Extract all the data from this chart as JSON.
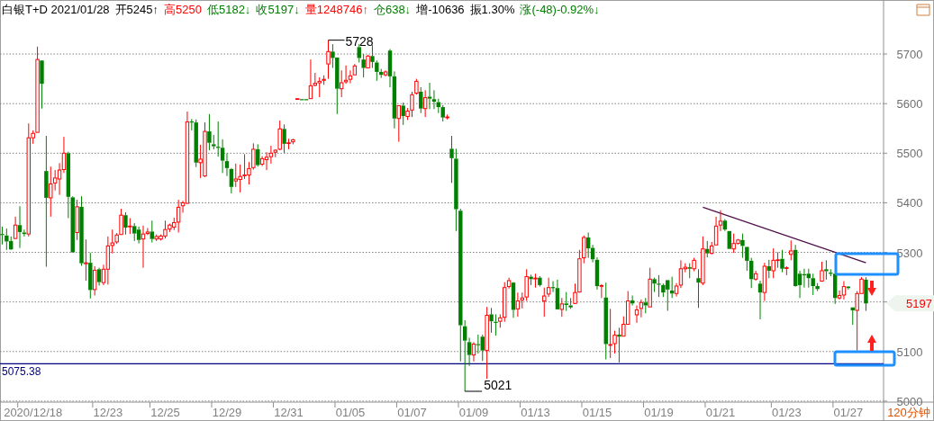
{
  "chart_data": {
    "type": "candlestick",
    "title": "白银T+D 2021/01/28",
    "categories": [
      null,
      null,
      null,
      null,
      null,
      null,
      null,
      "2020/12/18",
      null,
      null,
      null,
      null,
      null,
      null,
      null,
      null,
      null,
      null,
      null,
      null,
      null,
      null,
      null,
      null,
      "12/23",
      null,
      null,
      null,
      null,
      null,
      null,
      null,
      null,
      null,
      null,
      null,
      null,
      "12/25",
      null,
      null,
      null,
      null,
      null,
      null,
      null,
      null,
      null,
      null,
      null,
      null,
      null,
      "12/29",
      null,
      null,
      null,
      null,
      null,
      null,
      null,
      null,
      null,
      null,
      null,
      null,
      null,
      "12/31",
      null,
      null,
      null,
      null,
      null,
      null,
      null,
      null,
      null,
      null,
      null,
      null,
      null,
      "01/05",
      null,
      null,
      null,
      null,
      null,
      null,
      null,
      null,
      null,
      null,
      null,
      null,
      null,
      "01/07",
      null,
      null,
      null,
      null,
      null,
      null,
      null,
      null,
      null,
      null,
      null,
      null,
      null,
      "01/09",
      null,
      null,
      null,
      null,
      null,
      null,
      null,
      null,
      null,
      null,
      null,
      null,
      null,
      "01/13",
      null,
      null,
      null,
      null,
      null,
      null,
      null,
      null,
      null,
      null,
      null,
      null,
      null,
      "01/15",
      null,
      null,
      null,
      null,
      null,
      null,
      null,
      null,
      null,
      null,
      null,
      null,
      null,
      "01/19",
      null,
      null,
      null,
      null,
      null,
      null,
      null,
      null,
      null,
      null,
      null,
      null,
      null,
      "01/21",
      null,
      null,
      null,
      null,
      null,
      null,
      null,
      null,
      null,
      null,
      null,
      null,
      null,
      null,
      "01/23",
      null,
      null,
      null,
      null,
      null,
      null,
      null,
      null,
      null,
      null,
      null,
      null,
      null,
      "01/27",
      null,
      null,
      null,
      null
    ],
    "ohlc": [
      [
        5337,
        5352,
        5316,
        5335
      ],
      [
        5334,
        5348,
        5305,
        5322
      ],
      [
        5323,
        5332,
        5305,
        5306
      ],
      [
        5328,
        5372,
        5327,
        5355
      ],
      [
        5355,
        5393,
        5309,
        5341
      ],
      [
        5340,
        5346,
        5332,
        5337
      ],
      [
        5337,
        5560,
        5332,
        5531
      ],
      [
        5531,
        5546,
        5519,
        5540
      ],
      [
        5542,
        5715,
        5542,
        5689
      ],
      [
        5687,
        5687,
        5590,
        5640
      ],
      [
        5464,
        5535,
        5271,
        5410
      ],
      [
        5410,
        5473,
        5372,
        5438
      ],
      [
        5440,
        5466,
        5425,
        5450
      ],
      [
        5448,
        5480,
        5416,
        5466
      ],
      [
        5467,
        5533,
        5460,
        5500
      ],
      [
        5500,
        5503,
        5369,
        5412
      ],
      [
        5411,
        5413,
        5300,
        5300
      ],
      [
        5340,
        5406,
        5325,
        5392
      ],
      [
        5392,
        5413,
        5273,
        5278
      ],
      [
        5277,
        5326,
        5243,
        5279
      ],
      [
        5279,
        5299,
        5207,
        5224
      ],
      [
        5225,
        5272,
        5213,
        5264
      ],
      [
        5266,
        5269,
        5233,
        5240
      ],
      [
        5239,
        5275,
        5234,
        5266
      ],
      [
        5266,
        5332,
        5235,
        5313
      ],
      [
        5314,
        5346,
        5298,
        5319
      ],
      [
        5321,
        5339,
        5317,
        5335
      ],
      [
        5336,
        5388,
        5336,
        5375
      ],
      [
        5375,
        5381,
        5336,
        5350
      ],
      [
        5352,
        5369,
        5337,
        5353
      ],
      [
        5353,
        5359,
        5323,
        5338
      ],
      [
        5346,
        5352,
        5318,
        5325
      ],
      [
        5327,
        5354,
        5269,
        5337
      ],
      [
        5338,
        5349,
        5335,
        5341
      ],
      [
        5342,
        5364,
        5320,
        5327
      ],
      [
        5327,
        5336,
        5323,
        5332
      ],
      [
        5327,
        5336,
        5324,
        5333
      ],
      [
        5333,
        5364,
        5328,
        5346
      ],
      [
        5347,
        5358,
        5341,
        5355
      ],
      [
        5351,
        5370,
        5345,
        5360
      ],
      [
        5361,
        5406,
        5340,
        5391
      ],
      [
        5394,
        5404,
        5380,
        5400
      ],
      [
        5399,
        5584,
        5398,
        5563
      ],
      [
        5564,
        5569,
        5546,
        5562
      ],
      [
        5562,
        5568,
        5472,
        5481
      ],
      [
        5481,
        5517,
        5450,
        5488
      ],
      [
        5454,
        5562,
        5452,
        5544
      ],
      [
        5544,
        5579,
        5506,
        5521
      ],
      [
        5518,
        5537,
        5508,
        5514
      ],
      [
        5513,
        5564,
        5493,
        5512
      ],
      [
        5511,
        5528,
        5460,
        5485
      ],
      [
        5484,
        5500,
        5454,
        5470
      ],
      [
        5468,
        5470,
        5419,
        5432
      ],
      [
        5444,
        5479,
        5432,
        5448
      ],
      [
        5447,
        5477,
        5421,
        5453
      ],
      [
        5455,
        5498,
        5448,
        5456
      ],
      [
        5456,
        5482,
        5437,
        5469
      ],
      [
        5471,
        5520,
        5467,
        5508
      ],
      [
        5508,
        5518,
        5473,
        5476
      ],
      [
        5478,
        5494,
        5474,
        5489
      ],
      [
        5487,
        5502,
        5466,
        5492
      ],
      [
        5493,
        5515,
        5479,
        5500
      ],
      [
        5502,
        5508,
        5492,
        5506
      ],
      [
        5508,
        5566,
        5506,
        5549
      ],
      [
        5549,
        5558,
        5500,
        5519
      ],
      [
        5520,
        5529,
        5508,
        5521
      ],
      [
        5523,
        5529,
        5518,
        5527
      ],
      [
        5609,
        5610,
        5609,
        5610
      ],
      [
        5609,
        5609,
        5609,
        5609
      ],
      [
        5609,
        5609,
        5609,
        5609
      ],
      [
        5610,
        5689,
        5610,
        5636
      ],
      [
        5637,
        5662,
        5635,
        5641
      ],
      [
        5642,
        5653,
        5613,
        5645
      ],
      [
        5647,
        5657,
        5638,
        5649
      ],
      [
        5680,
        5728,
        5650,
        5705
      ],
      [
        5705,
        5720,
        5672,
        5692
      ],
      [
        5693,
        5693,
        5579,
        5630
      ],
      [
        5630,
        5667,
        5613,
        5642
      ],
      [
        5644,
        5677,
        5640,
        5647
      ],
      [
        5649,
        5667,
        5641,
        5656
      ],
      [
        5658,
        5680,
        5658,
        5676
      ],
      [
        5714,
        5720,
        5683,
        5692
      ],
      [
        5689,
        5700,
        5653,
        5672
      ],
      [
        5672,
        5698,
        5672,
        5696
      ],
      [
        5696,
        5718,
        5672,
        5684
      ],
      [
        5683,
        5687,
        5646,
        5664
      ],
      [
        5664,
        5670,
        5652,
        5658
      ],
      [
        5658,
        5667,
        5655,
        5664
      ],
      [
        5707,
        5710,
        5633,
        5655
      ],
      [
        5655,
        5665,
        5550,
        5570
      ],
      [
        5570,
        5596,
        5523,
        5596
      ],
      [
        5596,
        5602,
        5557,
        5575
      ],
      [
        5574,
        5591,
        5567,
        5585
      ],
      [
        5587,
        5624,
        5573,
        5618
      ],
      [
        5621,
        5650,
        5618,
        5645
      ],
      [
        5624,
        5633,
        5581,
        5590
      ],
      [
        5590,
        5627,
        5573,
        5612
      ],
      [
        5614,
        5642,
        5589,
        5610
      ],
      [
        5609,
        5627,
        5589,
        5604
      ],
      [
        5603,
        5610,
        5581,
        5593
      ],
      [
        5593,
        5597,
        5564,
        5572
      ],
      [
        5572,
        5578,
        5568,
        5573
      ],
      [
        5509,
        5535,
        5440,
        5490
      ],
      [
        5489,
        5509,
        5343,
        5387
      ],
      [
        5384,
        5388,
        5080,
        5153
      ],
      [
        5151,
        5163,
        5021,
        5122
      ],
      [
        5119,
        5128,
        5071,
        5093
      ],
      [
        5093,
        5119,
        5080,
        5115
      ],
      [
        5115,
        5134,
        5096,
        5113
      ],
      [
        5130,
        5134,
        5081,
        5102
      ],
      [
        5102,
        5190,
        5045,
        5173
      ],
      [
        5175,
        5188,
        5138,
        5161
      ],
      [
        5160,
        5175,
        5132,
        5159
      ],
      [
        5161,
        5175,
        5148,
        5168
      ],
      [
        5169,
        5240,
        5160,
        5229
      ],
      [
        5231,
        5249,
        5227,
        5243
      ],
      [
        5239,
        5240,
        5168,
        5184
      ],
      [
        5186,
        5219,
        5170,
        5202
      ],
      [
        5204,
        5219,
        5187,
        5208
      ],
      [
        5210,
        5266,
        5202,
        5251
      ],
      [
        5251,
        5255,
        5234,
        5246
      ],
      [
        5247,
        5257,
        5229,
        5248
      ],
      [
        5249,
        5252,
        5231,
        5234
      ],
      [
        5202,
        5229,
        5170,
        5212
      ],
      [
        5216,
        5249,
        5210,
        5229
      ],
      [
        5230,
        5242,
        5220,
        5229
      ],
      [
        5228,
        5245,
        5185,
        5185
      ],
      [
        5185,
        5208,
        5170,
        5196
      ],
      [
        5197,
        5220,
        5182,
        5194
      ],
      [
        5193,
        5208,
        5186,
        5189
      ],
      [
        5197,
        5237,
        5196,
        5219
      ],
      [
        5220,
        5305,
        5219,
        5287
      ],
      [
        5289,
        5334,
        5278,
        5330
      ],
      [
        5330,
        5340,
        5289,
        5308
      ],
      [
        5309,
        5315,
        5280,
        5286
      ],
      [
        5285,
        5290,
        5225,
        5232
      ],
      [
        5232,
        5236,
        5208,
        5233
      ],
      [
        5209,
        5239,
        5084,
        5115
      ],
      [
        5113,
        5186,
        5087,
        5114
      ],
      [
        5116,
        5142,
        5096,
        5133
      ],
      [
        5134,
        5148,
        5078,
        5130
      ],
      [
        5131,
        5171,
        5131,
        5155
      ],
      [
        5155,
        5222,
        5154,
        5202
      ],
      [
        5203,
        5213,
        5193,
        5197
      ],
      [
        5174,
        5193,
        5158,
        5184
      ],
      [
        5187,
        5205,
        5169,
        5199
      ],
      [
        5199,
        5208,
        5177,
        5193
      ],
      [
        5190,
        5269,
        5190,
        5246
      ],
      [
        5246,
        5249,
        5220,
        5237
      ],
      [
        5237,
        5254,
        5210,
        5236
      ],
      [
        5234,
        5237,
        5210,
        5219
      ],
      [
        5244,
        5244,
        5182,
        5225
      ],
      [
        5223,
        5251,
        5208,
        5217
      ],
      [
        5217,
        5238,
        5211,
        5232
      ],
      [
        5234,
        5284,
        5228,
        5267
      ],
      [
        5267,
        5278,
        5260,
        5270
      ],
      [
        5270,
        5278,
        5248,
        5267
      ],
      [
        5267,
        5289,
        5262,
        5284
      ],
      [
        5248,
        5266,
        5188,
        5239
      ],
      [
        5238,
        5332,
        5234,
        5307
      ],
      [
        5307,
        5323,
        5290,
        5298
      ],
      [
        5298,
        5321,
        5296,
        5313
      ],
      [
        5315,
        5372,
        5315,
        5353
      ],
      [
        5355,
        5385,
        5343,
        5363
      ],
      [
        5364,
        5367,
        5343,
        5346
      ],
      [
        5343,
        5343,
        5307,
        5307
      ],
      [
        5307,
        5338,
        5299,
        5318
      ],
      [
        5318,
        5327,
        5316,
        5325
      ],
      [
        5325,
        5338,
        5289,
        5313
      ],
      [
        5311,
        5311,
        5263,
        5283
      ],
      [
        5283,
        5289,
        5228,
        5246
      ],
      [
        5246,
        5263,
        5243,
        5257
      ],
      [
        5237,
        5243,
        5165,
        5219
      ],
      [
        5219,
        5279,
        5202,
        5272
      ],
      [
        5272,
        5285,
        5248,
        5263
      ],
      [
        5263,
        5308,
        5248,
        5284
      ],
      [
        5284,
        5300,
        5269,
        5285
      ],
      [
        5287,
        5305,
        5260,
        5267
      ],
      [
        5268,
        5272,
        5254,
        5269
      ],
      [
        5296,
        5324,
        5284,
        5303
      ],
      [
        5305,
        5315,
        5231,
        5232
      ],
      [
        5257,
        5263,
        5208,
        5234
      ],
      [
        5256,
        5267,
        5229,
        5255
      ],
      [
        5257,
        5267,
        5229,
        5248
      ],
      [
        5248,
        5257,
        5214,
        5232
      ],
      [
        5232,
        5238,
        5222,
        5226
      ],
      [
        5242,
        5281,
        5242,
        5263
      ],
      [
        5266,
        5284,
        5245,
        5262
      ],
      [
        5259,
        5266,
        5252,
        5258
      ],
      [
        5257,
        5257,
        5196,
        5208
      ],
      [
        5208,
        5223,
        5205,
        5213
      ],
      [
        5214,
        5242,
        5205,
        5231
      ],
      [
        5231,
        5232,
        5225,
        5228
      ],
      [
        5189,
        5189,
        5154,
        5183
      ],
      [
        5183,
        5222,
        5102,
        5217
      ],
      [
        5217,
        5250,
        5217,
        5246
      ],
      [
        5245,
        5250,
        5182,
        5197
      ]
    ],
    "series": [
      {
        "type": "line",
        "color": "#50104a",
        "values": [
          null,
          null,
          null,
          null,
          null,
          null,
          null,
          null,
          null,
          null,
          null,
          null,
          null,
          null,
          null,
          null,
          null,
          null,
          null,
          null,
          null,
          null,
          null,
          null,
          null,
          null,
          null,
          null,
          null,
          null,
          null,
          null,
          null,
          null,
          null,
          null,
          null,
          null,
          null,
          null,
          null,
          null,
          null,
          null,
          null,
          null,
          null,
          null,
          null,
          null,
          null,
          null,
          null,
          null,
          null,
          null,
          null,
          null,
          null,
          null,
          null,
          null,
          null,
          null,
          null,
          null,
          null,
          null,
          null,
          null,
          null,
          null,
          null,
          null,
          null,
          null,
          null,
          null,
          null,
          null,
          null,
          null,
          null,
          null,
          null,
          null,
          null,
          null,
          null,
          null,
          null,
          null,
          null,
          null,
          null,
          null,
          null,
          null,
          null,
          null,
          null,
          null,
          null,
          null,
          null,
          null,
          null,
          null,
          null,
          null,
          null,
          null,
          null,
          null,
          null,
          null,
          null,
          null,
          null,
          null,
          null,
          null,
          null,
          null,
          null,
          null,
          null,
          null,
          null,
          null,
          null,
          null,
          null,
          null,
          null,
          null,
          null,
          null,
          null,
          null,
          null,
          null,
          null,
          null,
          null,
          null,
          null,
          null,
          null,
          null,
          null,
          null,
          null,
          null,
          null,
          null,
          null,
          null,
          null,
          5391,
          null,
          null,
          null,
          null,
          null,
          null,
          null,
          null,
          null,
          null,
          null,
          null,
          null,
          null,
          null,
          null,
          null,
          null,
          null,
          null,
          null,
          null,
          null,
          null,
          null,
          null,
          null,
          null,
          null,
          null,
          null,
          null,
          null,
          null,
          null,
          null,
          5279
        ]
      }
    ],
    "ylim": [
      4998,
      5809
    ],
    "yticks": [
      5000,
      5100,
      {
        "value": 5200,
        "label": null
      },
      5300,
      5400,
      5500,
      5600,
      5700
    ],
    "grid": "y",
    "ref_lines": [
      {
        "axis": "y",
        "value": 5075.38,
        "label": "5075.38",
        "color": "#000080"
      }
    ],
    "annotations": [
      {
        "text": "5728",
        "y": 5728
      },
      "5021",
      "5197",
      "开5245↑",
      "高5250",
      "低5182↓",
      "收5197↓",
      "量1248746↑",
      "仓638↓",
      "增-10636",
      "振1.30%",
      "涨(-48)-0.92%↓",
      "120分钟"
    ]
  }
}
